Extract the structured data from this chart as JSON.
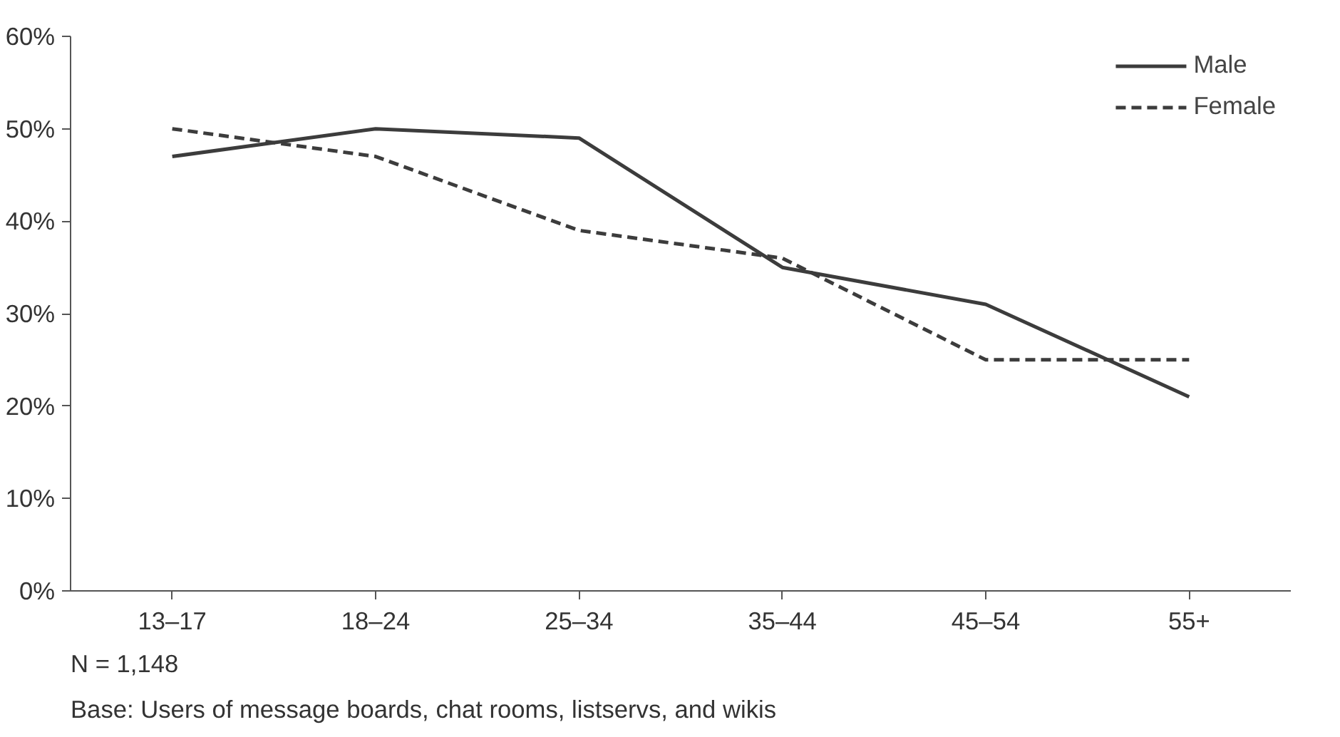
{
  "chart_data": {
    "type": "line",
    "categories": [
      "13–17",
      "18–24",
      "25–34",
      "35–44",
      "45–54",
      "55+"
    ],
    "series": [
      {
        "name": "Male",
        "color": "#3c3c3c",
        "values": [
          47,
          50,
          49,
          35,
          31,
          21
        ],
        "line_style": "solid"
      },
      {
        "name": "Female",
        "color": "#3c3c3c",
        "values": [
          50,
          47,
          39,
          36,
          25,
          25
        ],
        "line_style": "dashed"
      }
    ],
    "ylim": [
      0,
      60
    ],
    "yticks": [
      {
        "value": 0,
        "label": "0%"
      },
      {
        "value": 10,
        "label": "10%"
      },
      {
        "value": 20,
        "label": "20%"
      },
      {
        "value": 30,
        "label": "30%"
      },
      {
        "value": 40,
        "label": "40%"
      },
      {
        "value": 50,
        "label": "50%"
      },
      {
        "value": 60,
        "label": "60%"
      }
    ],
    "grid": false,
    "legend": "top right",
    "marker": "none",
    "annotations": [
      "N = 1,148",
      "Base: Users of message boards, chat rooms, listservs, and wikis"
    ]
  }
}
